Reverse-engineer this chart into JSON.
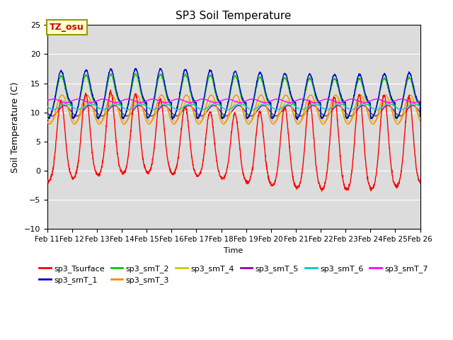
{
  "title": "SP3 Soil Temperature",
  "ylabel": "Soil Temperature (C)",
  "xlabel": "Time",
  "xlim_days": [
    11,
    26
  ],
  "ylim": [
    -10,
    25
  ],
  "yticks": [
    -10,
    -5,
    0,
    5,
    10,
    15,
    20,
    25
  ],
  "tz_label": "TZ_osu",
  "bg_color": "#dcdcdc",
  "series_colors": {
    "sp3_Tsurface": "#ff0000",
    "sp3_smT_1": "#0000cc",
    "sp3_smT_2": "#00cc00",
    "sp3_smT_3": "#ff8800",
    "sp3_smT_4": "#cccc00",
    "sp3_smT_5": "#9900aa",
    "sp3_smT_6": "#00cccc",
    "sp3_smT_7": "#ff00ff"
  },
  "n_points": 2000
}
